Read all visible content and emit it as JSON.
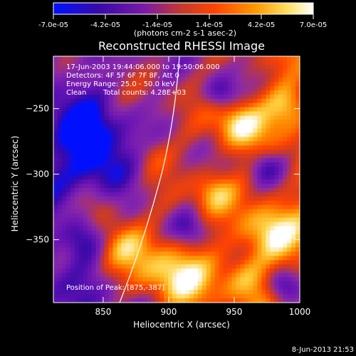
{
  "chart_data": {
    "type": "heatmap",
    "title": "Reconstructed RHESSI Image",
    "xlabel": "Heliocentric X (arcsec)",
    "ylabel": "Heliocentric Y (arcsec)",
    "xlim": [
      812,
      1000
    ],
    "ylim": [
      -398,
      -210
    ],
    "x_ticks": [
      850,
      900,
      950,
      1000
    ],
    "y_ticks": [
      -250,
      -300,
      -350
    ],
    "colorbar": {
      "ticks": [
        "-7.0e-05",
        "-4.2e-05",
        "-1.4e-05",
        "1.4e-05",
        "4.2e-05",
        "7.0e-05"
      ],
      "range": [
        -7e-05,
        7e-05
      ],
      "unit_label": "(photons cm-2 s-1 asec-2)"
    },
    "annotations": {
      "time_range": "17-Jun-2003 19:44:06.000 to 19:50:06.000",
      "detectors": "Detectors: 4F 5F 6F 7F 8F, Att 0",
      "energy_range": "Energy Range: 25.0 - 50.0 keV",
      "method": "Clean",
      "total_counts": "Total counts: 4.28E+03",
      "peak": "Position of Peak: [875,-387]"
    },
    "peak_position": [
      875,
      -387
    ],
    "colormap": [
      "#0010ff",
      "#3a0aa8",
      "#6a14b4",
      "#8a2aa8",
      "#c83a2a",
      "#ff4400",
      "#ff8c00",
      "#ffd040",
      "#ffffff"
    ]
  },
  "footer": {
    "date": "8-Jun-2013 21:53"
  }
}
